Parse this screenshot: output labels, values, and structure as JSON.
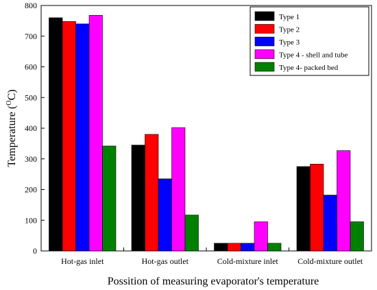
{
  "chart_data": {
    "type": "bar",
    "xlabel": "Possition of measuring evaporator's temperature",
    "ylabel": "Temperature (°C)",
    "ylabel_parts": [
      "Temperature (",
      "O",
      "C)"
    ],
    "ylim": [
      0,
      800
    ],
    "yticks": [
      "0",
      "100",
      "200",
      "300",
      "400",
      "500",
      "600",
      "700",
      "800"
    ],
    "categories": [
      "Hot-gas inlet",
      "Hot-gas outlet",
      "Cold-mixture inlet",
      "Cold-mixture outlet"
    ],
    "grid": false,
    "legend_position": "top-right",
    "series": [
      {
        "name": "Type 1",
        "color": "#000000",
        "values": [
          760,
          345,
          25,
          275
        ]
      },
      {
        "name": "Type 2",
        "color": "#ff0000",
        "values": [
          748,
          380,
          25,
          283
        ]
      },
      {
        "name": "Type 3",
        "color": "#0000ff",
        "values": [
          740,
          235,
          25,
          182
        ]
      },
      {
        "name": "Type 4 - shell and tube",
        "color": "#ff00ff",
        "values": [
          768,
          402,
          95,
          327
        ]
      },
      {
        "name": "Type 4- packed bed",
        "color": "#008000",
        "values": [
          342,
          117,
          25,
          95
        ]
      }
    ]
  }
}
